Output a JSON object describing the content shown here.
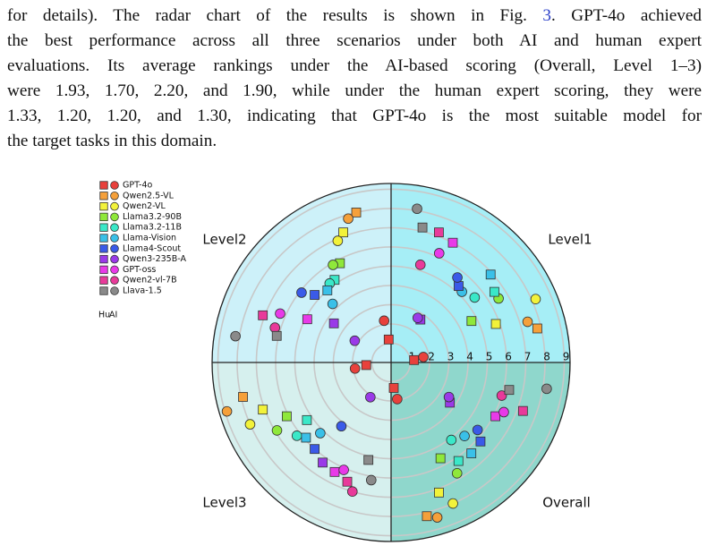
{
  "text": {
    "lines": [
      [
        "for details).  The radar chart of the results is shown in Fig. ",
        "3",
        ".  GPT-4o achieved"
      ],
      [
        "the best performance across all three scenarios under both AI and human expert"
      ],
      [
        "evaluations. Its average rankings under the AI-based scoring (Overall, Level 1–3)"
      ],
      [
        "were 1.93, 1.70, 2.20, and 1.90, while under the human expert scoring, they were"
      ],
      [
        "1.33, 1.20, 1.20, and 1.30, indicating that GPT-4o is the most suitable model for"
      ],
      [
        "the target tasks in this domain."
      ]
    ]
  },
  "chart_data": {
    "type": "polar-rank",
    "quadrants": [
      "Level1",
      "Level2",
      "Level3",
      "Overall"
    ],
    "quadrant_colors": [
      "#a6eef6",
      "#cdf1f9",
      "#d6f0ee",
      "#8fd7cc"
    ],
    "legend_columns": [
      "Hu",
      "AI"
    ],
    "rlim": [
      0,
      9.3
    ],
    "rticks": [
      1,
      2,
      3,
      4,
      5,
      6,
      7,
      8,
      9
    ],
    "grid": true,
    "series": [
      {
        "name": "GPT-4o",
        "color": "#e8413c",
        "hu": [
          1.2,
          1.2,
          1.3,
          1.33
        ],
        "ai": [
          1.7,
          2.2,
          1.9,
          1.93
        ]
      },
      {
        "name": "Qwen2.5-VL",
        "color": "#f5a03a",
        "hu": [
          7.8,
          8.0,
          7.9,
          8.2
        ],
        "ai": [
          7.4,
          7.8,
          8.9,
          8.4
        ]
      },
      {
        "name": "Qwen2-VL",
        "color": "#f2f23a",
        "hu": [
          5.8,
          7.2,
          7.1,
          7.2
        ],
        "ai": [
          8.2,
          6.9,
          8.0,
          8.0
        ]
      },
      {
        "name": "Llama3.2-90B",
        "color": "#8fe83a",
        "hu": [
          4.7,
          5.8,
          6.1,
          5.6
        ],
        "ai": [
          6.5,
          5.9,
          6.9,
          6.7
        ]
      },
      {
        "name": "Llama3.2-11B",
        "color": "#3ae8c8",
        "hu": [
          6.5,
          5.2,
          5.3,
          6.2
        ],
        "ai": [
          5.5,
          5.2,
          6.2,
          5.1
        ]
      },
      {
        "name": "Llama-Vision",
        "color": "#3ac0e8",
        "hu": [
          6.9,
          5.0,
          5.9,
          6.3
        ],
        "ai": [
          5.2,
          4.3,
          5.2,
          5.4
        ]
      },
      {
        "name": "Llama4-Scout",
        "color": "#3a5ae8",
        "hu": [
          5.3,
          5.3,
          6.0,
          6.2
        ],
        "ai": [
          5.6,
          5.9,
          4.2,
          5.7
        ]
      },
      {
        "name": "Qwen3-235B-A",
        "color": "#9a3ae8",
        "hu": [
          2.7,
          3.6,
          6.3,
          3.7
        ],
        "ai": [
          2.7,
          2.2,
          2.1,
          3.5
        ]
      },
      {
        "name": "GPT-oss",
        "color": "#e83ae8",
        "hu": [
          7.0,
          4.9,
          6.4,
          6.1
        ],
        "ai": [
          6.2,
          6.3,
          6.1,
          6.4
        ]
      },
      {
        "name": "Qwen2-vl-7B",
        "color": "#e83a9a",
        "hu": [
          7.2,
          7.1,
          6.6,
          7.3
        ],
        "ai": [
          5.3,
          6.3,
          7.0,
          6.0
        ]
      },
      {
        "name": "Llava-1.5",
        "color": "#8a8a8a",
        "hu": [
          7.2,
          6.1,
          5.2,
          6.3
        ],
        "ai": [
          8.1,
          8.2,
          6.2,
          8.2
        ]
      }
    ]
  }
}
